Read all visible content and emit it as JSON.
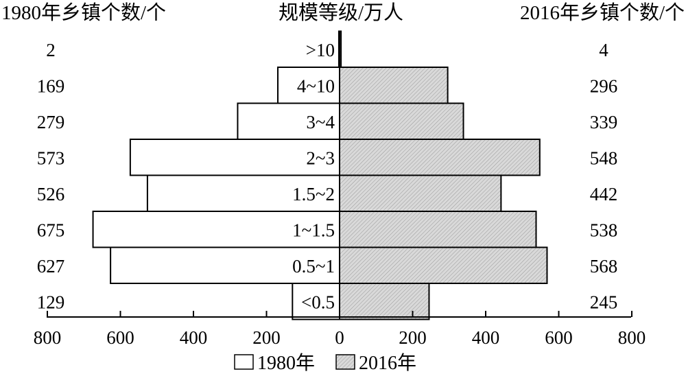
{
  "chart_data": {
    "type": "bar",
    "layout": "population-pyramid",
    "headers": {
      "left": "1980年乡镇个数/个",
      "center": "规模等级/万人",
      "right": "2016年乡镇个数/个"
    },
    "categories": [
      ">10",
      "4~10",
      "3~4",
      "2~3",
      "1.5~2",
      "1~1.5",
      "0.5~1",
      "<0.5"
    ],
    "series": [
      {
        "name": "1980年",
        "values": [
          2,
          169,
          279,
          573,
          526,
          675,
          627,
          129
        ],
        "color": "#ffffff"
      },
      {
        "name": "2016年",
        "values": [
          4,
          296,
          339,
          548,
          442,
          538,
          568,
          245
        ],
        "color": "#d9d9d9"
      }
    ],
    "x_ticks_left": [
      "800",
      "600",
      "400",
      "200",
      "0"
    ],
    "x_ticks_right": [
      "200",
      "400",
      "600",
      "800"
    ],
    "xlim": [
      0,
      800
    ],
    "legend_position": "bottom-center",
    "grid": false
  }
}
